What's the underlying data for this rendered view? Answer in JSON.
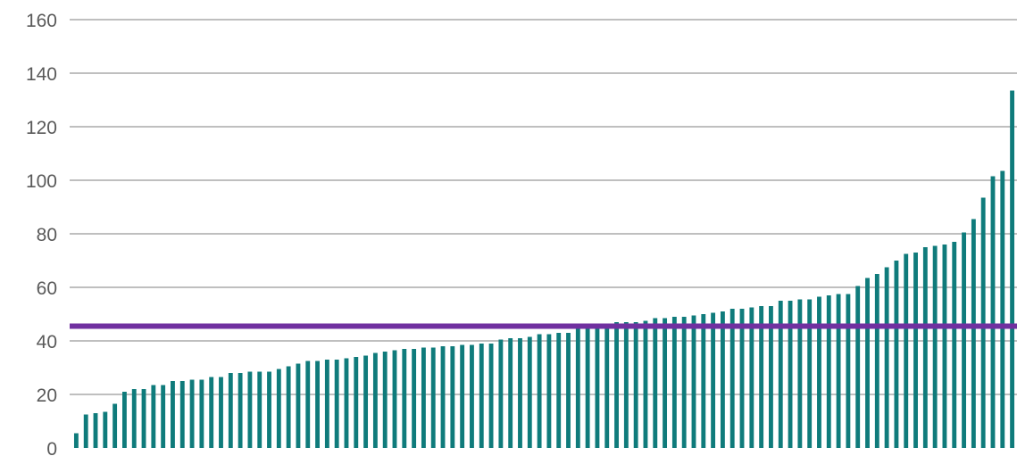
{
  "chart_data": {
    "type": "bar",
    "title": "",
    "xlabel": "",
    "ylabel": "",
    "ylim": [
      0,
      160
    ],
    "yticks": [
      0,
      20,
      40,
      60,
      80,
      100,
      120,
      140,
      160
    ],
    "ytick_labels": [
      "0",
      "20",
      "40",
      "60",
      "80",
      "100",
      "120",
      "140",
      "160"
    ],
    "grid": true,
    "legend": "none",
    "bar_color": "#0f7b7b",
    "reference_line": {
      "value": 45.5,
      "color": "#7030a0"
    },
    "values": [
      5.5,
      12.5,
      13,
      13.5,
      16.5,
      21,
      22,
      22,
      23.5,
      23.5,
      25,
      25,
      25.5,
      25.5,
      26.5,
      26.5,
      28,
      28,
      28.5,
      28.5,
      28.5,
      29.5,
      30.5,
      31.5,
      32.5,
      32.5,
      33,
      33,
      33.5,
      34,
      34.5,
      35.5,
      36,
      36.5,
      37,
      37,
      37.5,
      37.5,
      38,
      38,
      38.5,
      38.5,
      39,
      39,
      40.5,
      41,
      41,
      41.5,
      42.5,
      42.5,
      43,
      43,
      44.5,
      45.5,
      45.5,
      46,
      47,
      47,
      47,
      47.5,
      48.5,
      48.5,
      49,
      49,
      49.5,
      50,
      50.5,
      51,
      52,
      52,
      52.5,
      53,
      53,
      55,
      55,
      55.5,
      55.5,
      56.5,
      57,
      57.5,
      57.5,
      60.5,
      63.5,
      65,
      67.5,
      70,
      72.5,
      73,
      75,
      75.5,
      76,
      77,
      80.5,
      85.5,
      93.5,
      101.5,
      103.5,
      133.5
    ]
  }
}
